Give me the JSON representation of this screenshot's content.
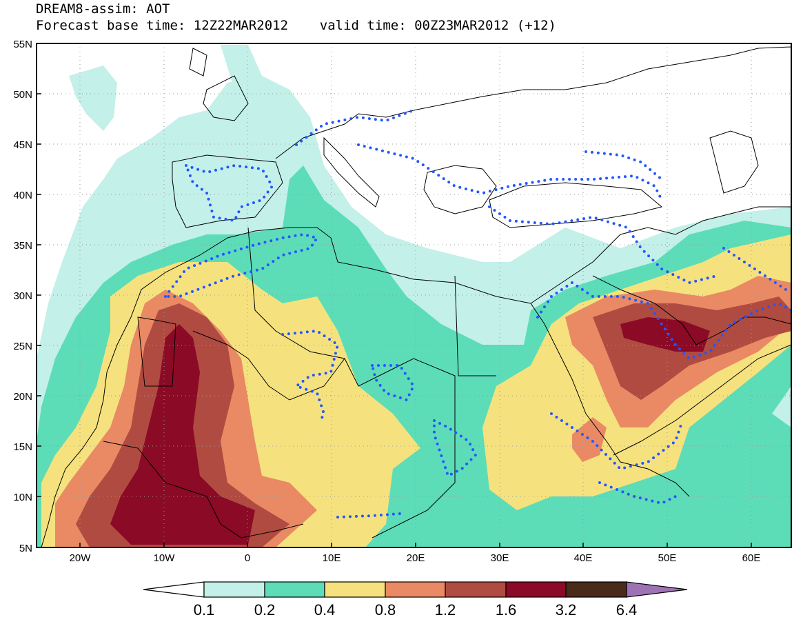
{
  "title": {
    "line1": "DREAM8-assim: AOT",
    "line2": "Forecast base time: 12Z22MAR2012    valid time: 00Z23MAR2012 (+12)"
  },
  "map": {
    "lat_labels": [
      "55N",
      "50N",
      "45N",
      "40N",
      "35N",
      "30N",
      "25N",
      "20N",
      "15N",
      "10N",
      "5N"
    ],
    "lon_labels": [
      "20W",
      "10W",
      "0",
      "10E",
      "20E",
      "30E",
      "40E",
      "50E",
      "60E"
    ],
    "extent": {
      "lon_min": -25,
      "lon_max": 65,
      "lat_min": 5,
      "lat_max": 55
    },
    "grid": "dotted",
    "variable": "Aerosol Optical Thickness (AOT)"
  },
  "colorbar": {
    "labels": [
      "0.1",
      "0.2",
      "0.4",
      "0.8",
      "1.2",
      "1.6",
      "3.2",
      "6.4"
    ],
    "colors": [
      "#ffffff",
      "#c3f0e8",
      "#5ddcb8",
      "#f5e27e",
      "#e98a64",
      "#b04b41",
      "#8b0a26",
      "#4a2a18",
      "#9d73b4"
    ]
  }
}
